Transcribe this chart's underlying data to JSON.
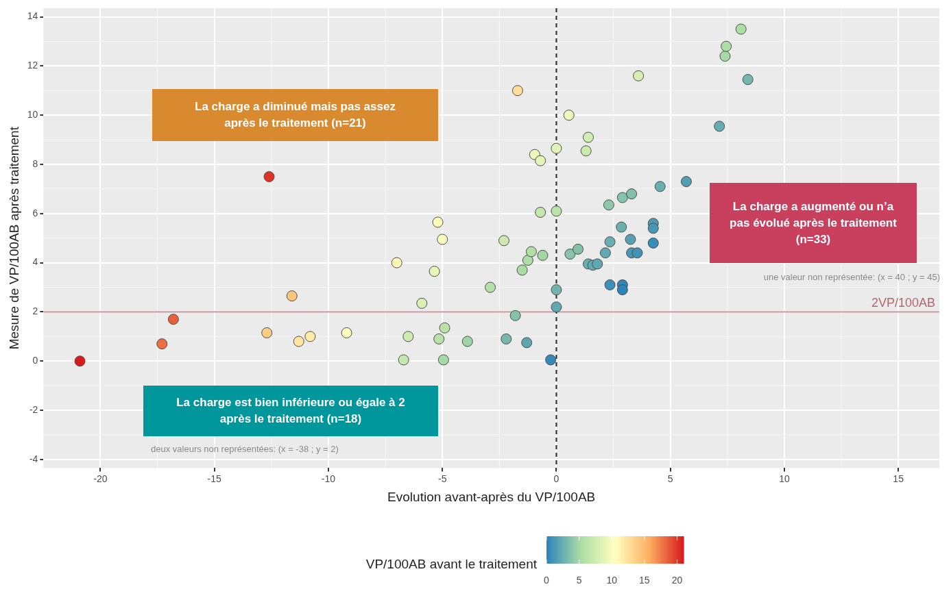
{
  "chart_data": {
    "type": "scatter",
    "xlabel": "Evolution avant-après du VP/100AB",
    "ylabel": "Mesure de VP/100AB après traitement",
    "clabel": "VP/100AB avant le traitement",
    "xlim": [
      -22.5,
      16.8
    ],
    "xticks": [
      -20,
      -15,
      -10,
      -5,
      0,
      5,
      10,
      15
    ],
    "ylim": [
      -4.35,
      14.35
    ],
    "yticks": [
      -4,
      -2,
      0,
      2,
      4,
      6,
      8,
      10,
      12,
      14
    ],
    "clim": [
      0,
      21
    ],
    "cticks": [
      0,
      5,
      10,
      15,
      20
    ],
    "grid": true,
    "legend": false,
    "marker": "circle",
    "x": [
      -20.9,
      -17.3,
      -16.8,
      -12.6,
      -12.7,
      -11.6,
      -11.3,
      -10.8,
      -9.2,
      -7.0,
      -6.7,
      -6.5,
      -5.9,
      -5.35,
      -5.2,
      -5.0,
      -5.15,
      -4.9,
      -4.95,
      -3.9,
      -2.9,
      -2.3,
      -2.2,
      -1.8,
      -1.7,
      -1.3,
      -1.5,
      -1.25,
      -1.1,
      -0.95,
      -0.7,
      -0.7,
      -0.6,
      -0.25,
      0,
      0,
      0,
      0,
      0.55,
      0.6,
      0.95,
      1.4,
      1.3,
      1.4,
      1.6,
      1.8,
      2.15,
      2.3,
      2.35,
      2.35,
      2.85,
      2.9,
      2.9,
      2.9,
      3.25,
      3.3,
      3.3,
      3.55,
      3.6,
      4.25,
      4.25,
      4.25,
      4.55,
      5.7,
      7.15,
      7.4,
      7.45,
      8.1,
      8.4
    ],
    "values": [
      0,
      0.7,
      1.7,
      7.5,
      1.15,
      2.65,
      0.8,
      1.0,
      1.15,
      4.0,
      0.05,
      1.0,
      2.35,
      3.65,
      5.65,
      4.95,
      0.9,
      1.35,
      0.05,
      0.8,
      3.0,
      4.9,
      0.9,
      1.85,
      11.0,
      0.75,
      3.7,
      4.1,
      4.45,
      8.4,
      8.15,
      6.05,
      4.3,
      0.05,
      8.65,
      6.1,
      2.9,
      2.2,
      10.0,
      4.35,
      4.55,
      9.1,
      8.55,
      3.95,
      3.9,
      3.95,
      4.4,
      6.35,
      4.85,
      3.1,
      5.45,
      6.65,
      3.1,
      2.9,
      4.95,
      4.4,
      6.8,
      4.4,
      11.6,
      5.6,
      5.4,
      4.8,
      7.1,
      7.3,
      9.55,
      12.4,
      12.8,
      13.5,
      11.45
    ],
    "cvalues": [
      20.9,
      18.0,
      18.5,
      20.1,
      13.85,
      14.25,
      12.1,
      11.8,
      10.35,
      11.0,
      6.75,
      7.5,
      8.25,
      9.0,
      10.85,
      9.95,
      6.05,
      6.25,
      5.0,
      4.7,
      5.9,
      7.2,
      3.1,
      3.65,
      12.7,
      2.05,
      5.2,
      5.35,
      5.55,
      9.35,
      8.85,
      6.75,
      4.9,
      0.3,
      8.65,
      6.1,
      2.9,
      2.2,
      9.45,
      3.75,
      3.6,
      7.7,
      7.25,
      2.55,
      2.3,
      2.15,
      2.25,
      4.05,
      2.5,
      0.75,
      2.6,
      3.75,
      0.2,
      0,
      1.7,
      1.1,
      3.5,
      0.85,
      8.0,
      1.35,
      1.15,
      0.55,
      2.55,
      1.6,
      2.4,
      5.0,
      5.35,
      5.4,
      3.05
    ],
    "ref_lines": [
      {
        "axis": "y",
        "value": 2,
        "label": "2VP/100AB",
        "color": "#c98b93",
        "line_style": "solid"
      },
      {
        "axis": "x",
        "value": 0,
        "color": "#333333",
        "line_style": "dashed"
      }
    ],
    "annotations": [
      "La charge a diminué mais pas assez après le traitement (n=21)",
      "La charge a augmenté ou n’a pas évolué après le traitement (n=33)",
      "La charge est bien inférieure ou égale à 2 après le traitement (n=18)",
      "une valeur non représentée: (x = 40 ; y = 45)",
      "deux valeurs non représentées: (x = -38 ; y = 2)"
    ]
  }
}
